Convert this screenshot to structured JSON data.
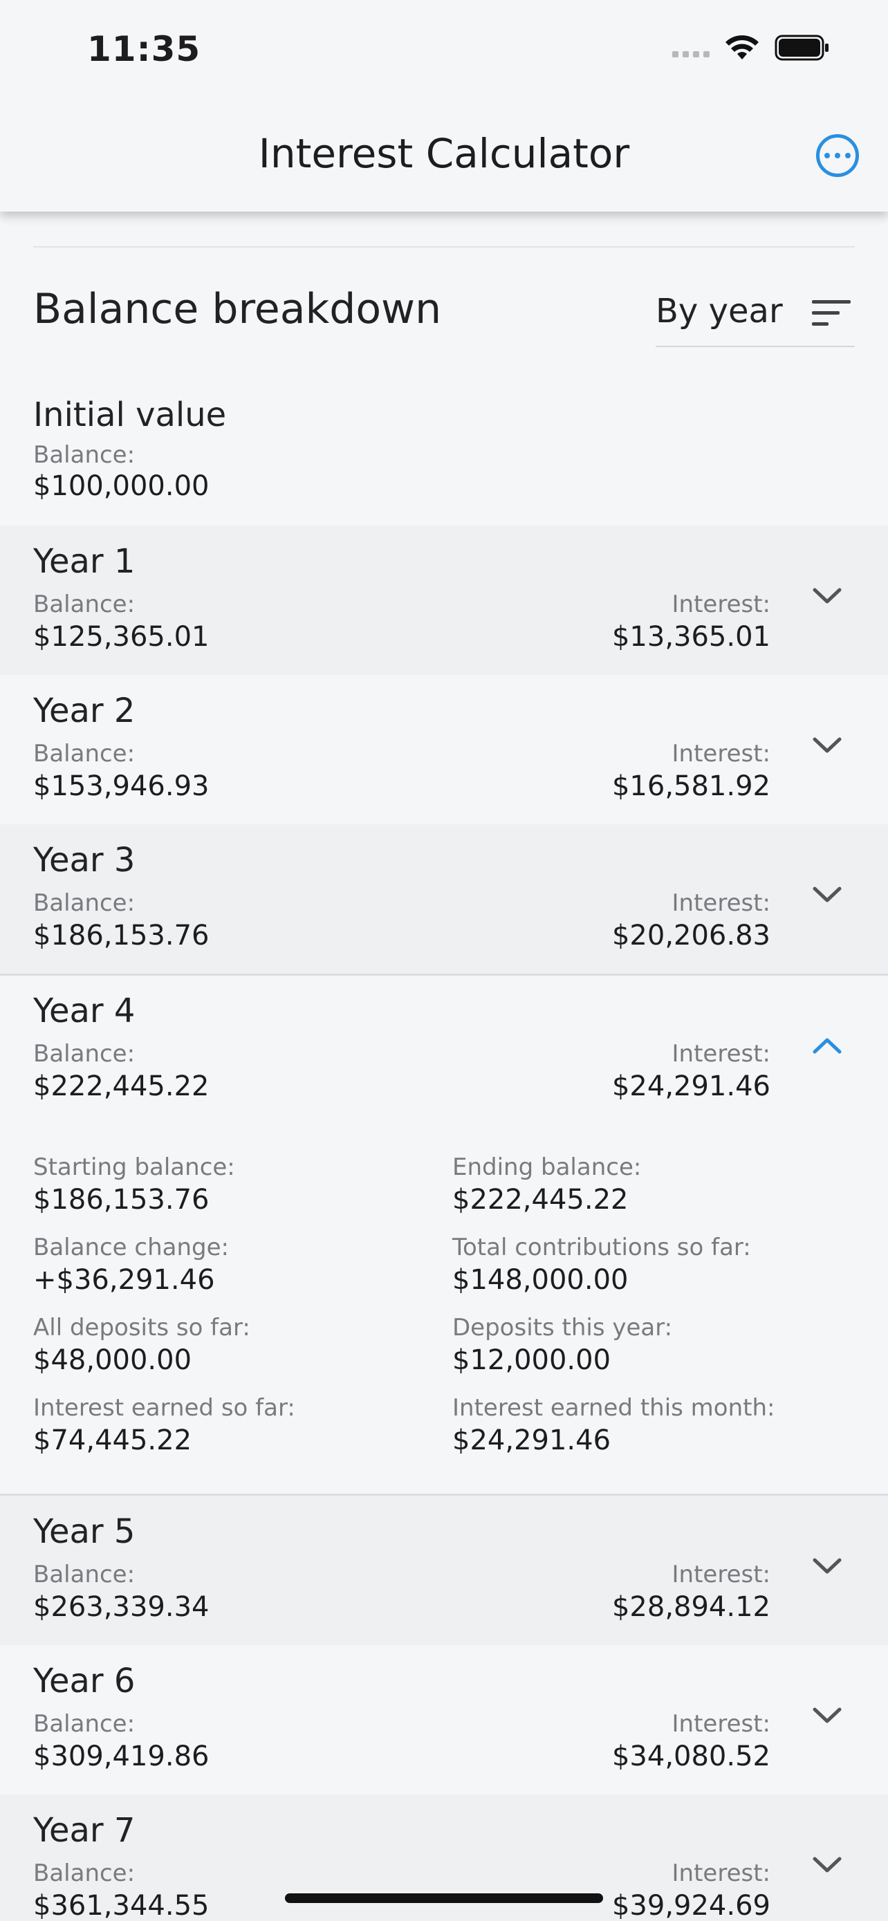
{
  "status_bar": {
    "time": "11:35"
  },
  "nav": {
    "title": "Interest Calculator",
    "more_icon": "ellipsis-circle-icon"
  },
  "section": {
    "title": "Balance breakdown",
    "sort_value": "By year",
    "sort_icon": "sort-lines-icon"
  },
  "initial": {
    "title": "Initial value",
    "balance_label": "Balance:",
    "balance": "$100,000.00"
  },
  "years": [
    {
      "title": "Year 1",
      "balance_label": "Balance:",
      "balance": "$125,365.01",
      "interest_label": "Interest:",
      "interest": "$13,365.01",
      "expanded": false
    },
    {
      "title": "Year 2",
      "balance_label": "Balance:",
      "balance": "$153,946.93",
      "interest_label": "Interest:",
      "interest": "$16,581.92",
      "expanded": false
    },
    {
      "title": "Year 3",
      "balance_label": "Balance:",
      "balance": "$186,153.76",
      "interest_label": "Interest:",
      "interest": "$20,206.83",
      "expanded": false
    },
    {
      "title": "Year 4",
      "balance_label": "Balance:",
      "balance": "$222,445.22",
      "interest_label": "Interest:",
      "interest": "$24,291.46",
      "expanded": true
    },
    {
      "title": "Year 5",
      "balance_label": "Balance:",
      "balance": "$263,339.34",
      "interest_label": "Interest:",
      "interest": "$28,894.12",
      "expanded": false
    },
    {
      "title": "Year 6",
      "balance_label": "Balance:",
      "balance": "$309,419.86",
      "interest_label": "Interest:",
      "interest": "$34,080.52",
      "expanded": false
    },
    {
      "title": "Year 7",
      "balance_label": "Balance:",
      "balance": "$361,344.55",
      "interest_label": "Interest:",
      "interest": "$39,924.69",
      "expanded": false
    }
  ],
  "year4_details": {
    "starting_balance_label": "Starting balance:",
    "starting_balance": "$186,153.76",
    "ending_balance_label": "Ending balance:",
    "ending_balance": "$222,445.22",
    "balance_change_label": "Balance change:",
    "balance_change": "+$36,291.46",
    "total_contributions_label": "Total contributions so far:",
    "total_contributions": "$148,000.00",
    "all_deposits_label": "All deposits so far:",
    "all_deposits": "$48,000.00",
    "deposits_year_label": "Deposits this year:",
    "deposits_year": "$12,000.00",
    "interest_so_far_label": "Interest earned so far:",
    "interest_so_far": "$74,445.22",
    "interest_month_label": "Interest earned this month:",
    "interest_month": "$24,291.46"
  },
  "colors": {
    "accent": "#2a8fe0",
    "row_alt": "#eff0f2",
    "background": "#f5f6f8"
  }
}
